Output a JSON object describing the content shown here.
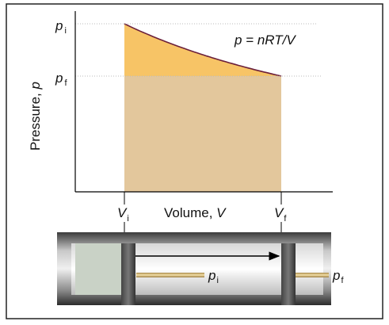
{
  "graph": {
    "y_axis": {
      "label": "Pressure,",
      "variable": "p"
    },
    "x_axis": {
      "label": "Volume,",
      "variable": "V"
    },
    "p_initial": {
      "symbol": "p",
      "subscript": "i"
    },
    "p_final": {
      "symbol": "p",
      "subscript": "f"
    },
    "v_initial": {
      "symbol": "V",
      "subscript": "i"
    },
    "v_final": {
      "symbol": "V",
      "subscript": "f"
    },
    "equation": "p = nRT/V"
  },
  "piston": {
    "left_label": {
      "symbol": "p",
      "subscript": "i"
    },
    "right_label": {
      "symbol": "p",
      "subscript": "f"
    }
  }
}
